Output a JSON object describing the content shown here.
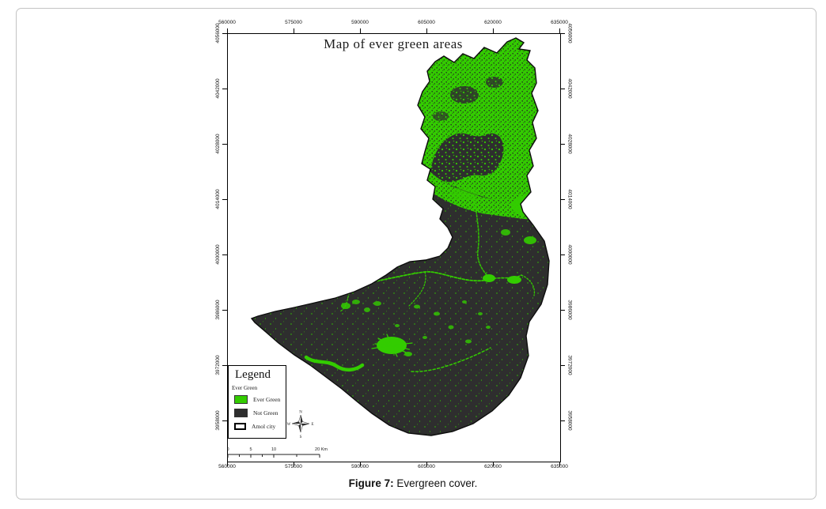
{
  "figure": {
    "title": "Map of ever green areas",
    "caption_bold": "Figure 7:",
    "caption_rest": " Evergreen cover."
  },
  "axes": {
    "x_ticks": [
      "560000",
      "575000",
      "590000",
      "605000",
      "620000",
      "635000"
    ],
    "y_ticks": [
      "4056000",
      "4042000",
      "4028000",
      "4014000",
      "4000000",
      "3986000",
      "3972000",
      "3958000"
    ]
  },
  "legend": {
    "title": "Legend",
    "layer_name": "Ever Green",
    "items": [
      {
        "label": "Ever Green",
        "swatch": "evergreen"
      },
      {
        "label": "Not Green",
        "swatch": "notgreen"
      },
      {
        "label": "Amol city",
        "swatch": "outline"
      }
    ]
  },
  "scalebar": {
    "ticks": [
      "0",
      "5",
      "10",
      "20 Km"
    ]
  },
  "compass": {
    "north": "N",
    "east": "E",
    "south": "S",
    "west": "W"
  },
  "colors": {
    "evergreen": "#33cc00",
    "notgreen": "#2e2e2e",
    "speck_dark": "#242424",
    "map_border": "#0d0d0d"
  }
}
